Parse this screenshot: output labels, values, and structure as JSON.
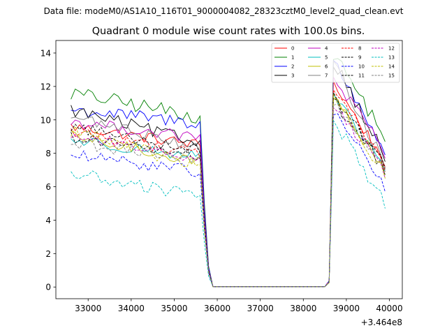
{
  "suptitle": "Data file: modeM0/AS1A10_116T01_9000004082_28323cztM0_level2_quad_clean.evt",
  "chart_data": {
    "type": "line",
    "title": "Quadrant 0 module wise count rates with 100.0s bins.",
    "xlabel": "",
    "ylabel": "",
    "x_offset_label": "+3.464e8",
    "xlim": [
      32250,
      40300
    ],
    "ylim": [
      -0.7,
      14.75
    ],
    "xticks": [
      33000,
      34000,
      35000,
      36000,
      37000,
      38000,
      39000,
      40000
    ],
    "yticks": [
      0,
      2,
      4,
      6,
      8,
      10,
      12,
      14
    ],
    "xtick_labels": [
      "33000",
      "34000",
      "35000",
      "36000",
      "37000",
      "38000",
      "39000",
      "40000"
    ],
    "ytick_labels": [
      "0",
      "2",
      "4",
      "6",
      "8",
      "10",
      "12",
      "14"
    ],
    "grid": false,
    "legend_location": "top-right",
    "legend_columns": 4,
    "x_start": 32600,
    "bin_width": 100,
    "series": [
      {
        "name": "0",
        "color": "#ff0000",
        "dash": "solid",
        "base_start": 9.6,
        "base_end": 8.5,
        "noise": 0.35,
        "peak": 12.2,
        "end_level": 7.5
      },
      {
        "name": "1",
        "color": "#008000",
        "dash": "solid",
        "base_start": 11.6,
        "base_end": 10.2,
        "noise": 0.45,
        "peak": 14.0,
        "end_level": 9.0
      },
      {
        "name": "2",
        "color": "#0000ff",
        "dash": "solid",
        "base_start": 10.6,
        "base_end": 9.8,
        "noise": 0.4,
        "peak": 13.5,
        "end_level": 8.2
      },
      {
        "name": "3",
        "color": "#000000",
        "dash": "solid",
        "base_start": 10.6,
        "base_end": 8.6,
        "noise": 0.4,
        "peak": 13.6,
        "end_level": 7.8
      },
      {
        "name": "4",
        "color": "#bf00bf",
        "dash": "solid",
        "base_start": 9.9,
        "base_end": 8.9,
        "noise": 0.35,
        "peak": 12.6,
        "end_level": 8.0
      },
      {
        "name": "5",
        "color": "#00bfbf",
        "dash": "solid",
        "base_start": 8.8,
        "base_end": 7.8,
        "noise": 0.35,
        "peak": 11.3,
        "end_level": 7.2
      },
      {
        "name": "6",
        "color": "#bfbf00",
        "dash": "solid",
        "base_start": 9.0,
        "base_end": 7.5,
        "noise": 0.35,
        "peak": 11.4,
        "end_level": 7.0
      },
      {
        "name": "7",
        "color": "#808080",
        "dash": "solid",
        "base_start": 10.2,
        "base_end": 8.4,
        "noise": 0.35,
        "peak": 13.3,
        "end_level": 7.3
      },
      {
        "name": "8",
        "color": "#ff0000",
        "dash": "dashed",
        "base_start": 9.3,
        "base_end": 8.0,
        "noise": 0.35,
        "peak": 12.0,
        "end_level": 7.2
      },
      {
        "name": "9",
        "color": "#000000",
        "dash": "dashed",
        "base_start": 9.6,
        "base_end": 8.2,
        "noise": 0.35,
        "peak": 11.5,
        "end_level": 7.4
      },
      {
        "name": "10",
        "color": "#0000ff",
        "dash": "dashed",
        "base_start": 7.9,
        "base_end": 6.9,
        "noise": 0.35,
        "peak": 10.6,
        "end_level": 6.0
      },
      {
        "name": "11",
        "color": "#000000",
        "dash": "dashed",
        "base_start": 9.0,
        "base_end": 7.8,
        "noise": 0.35,
        "peak": 11.2,
        "end_level": 7.0
      },
      {
        "name": "12",
        "color": "#bf00bf",
        "dash": "dashed",
        "base_start": 9.1,
        "base_end": 7.7,
        "noise": 0.35,
        "peak": 11.1,
        "end_level": 6.8
      },
      {
        "name": "13",
        "color": "#00bfbf",
        "dash": "dashed",
        "base_start": 6.8,
        "base_end": 5.4,
        "noise": 0.4,
        "peak": 10.0,
        "end_level": 5.0
      },
      {
        "name": "14",
        "color": "#bfbf00",
        "dash": "dashed",
        "base_start": 9.4,
        "base_end": 7.2,
        "noise": 0.4,
        "peak": 11.2,
        "end_level": 6.8
      },
      {
        "name": "15",
        "color": "#808080",
        "dash": "dashed",
        "base_start": 8.6,
        "base_end": 7.6,
        "noise": 0.35,
        "peak": 11.0,
        "end_level": 7.0
      }
    ]
  }
}
